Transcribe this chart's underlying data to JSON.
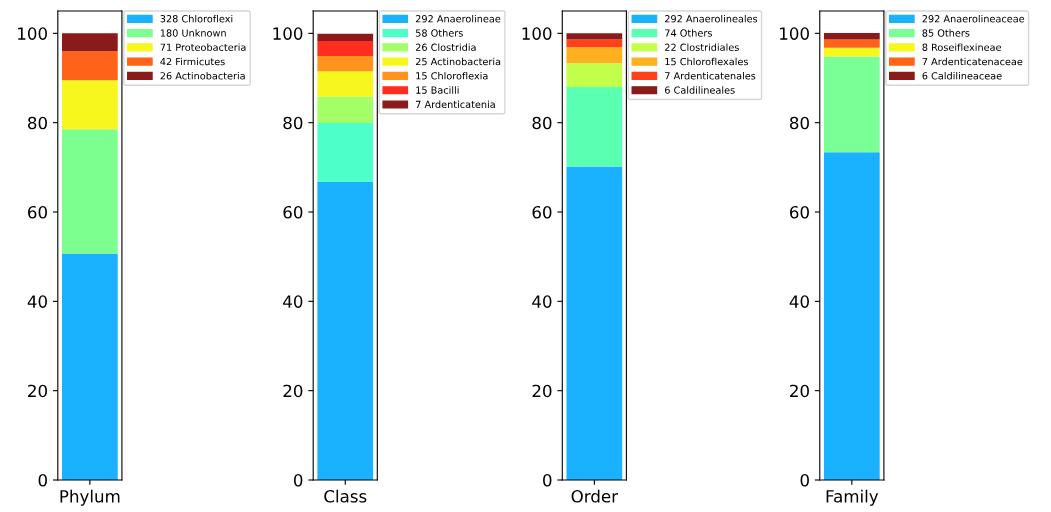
{
  "chart_data": [
    {
      "type": "bar",
      "stacked": true,
      "categories": [
        "Phylum"
      ],
      "ylim": [
        0,
        105
      ],
      "yticks": [
        0,
        20,
        40,
        60,
        80,
        100
      ],
      "legend": "top right",
      "series": [
        {
          "name": "328 Chloroflexi",
          "color": "#1ab2ff",
          "values": [
            50.7
          ]
        },
        {
          "name": "180 Unknown",
          "color": "#7dff8f",
          "values": [
            27.8
          ]
        },
        {
          "name": "71 Proteobacteria",
          "color": "#f7f71e",
          "values": [
            11.0
          ]
        },
        {
          "name": "42 Firmicutes",
          "color": "#ff6319",
          "values": [
            6.5
          ]
        },
        {
          "name": "26 Actinobacteria",
          "color": "#8b1a1a",
          "values": [
            4.0
          ]
        }
      ]
    },
    {
      "type": "bar",
      "stacked": true,
      "categories": [
        "Class"
      ],
      "ylim": [
        0,
        105
      ],
      "yticks": [
        0,
        20,
        40,
        60,
        80,
        100
      ],
      "legend": "top right",
      "series": [
        {
          "name": "292 Anaerolineae",
          "color": "#1ab2ff",
          "values": [
            66.7
          ]
        },
        {
          "name": "58 Others",
          "color": "#4dffc8",
          "values": [
            13.2
          ]
        },
        {
          "name": "26 Clostridia",
          "color": "#a3ff68",
          "values": [
            5.9
          ]
        },
        {
          "name": "25 Actinobacteria",
          "color": "#f7f71e",
          "values": [
            5.7
          ]
        },
        {
          "name": "15 Chloroflexia",
          "color": "#ff931e",
          "values": [
            3.4
          ]
        },
        {
          "name": "15 Bacilli",
          "color": "#ff2e1e",
          "values": [
            3.4
          ]
        },
        {
          "name": "7 Ardenticatenia",
          "color": "#8b1a1a",
          "values": [
            1.6
          ]
        }
      ]
    },
    {
      "type": "bar",
      "stacked": true,
      "categories": [
        "Order"
      ],
      "ylim": [
        0,
        105
      ],
      "yticks": [
        0,
        20,
        40,
        60,
        80,
        100
      ],
      "legend": "top right",
      "series": [
        {
          "name": "292 Anaerolineales",
          "color": "#1ab2ff",
          "values": [
            70.2
          ]
        },
        {
          "name": "74 Others",
          "color": "#5affb2",
          "values": [
            17.8
          ]
        },
        {
          "name": "22 Clostridiales",
          "color": "#c3ff4a",
          "values": [
            5.3
          ]
        },
        {
          "name": "15 Chloroflexales",
          "color": "#ffb01e",
          "values": [
            3.6
          ]
        },
        {
          "name": "7 Ardenticatenales",
          "color": "#ff4219",
          "values": [
            1.7
          ]
        },
        {
          "name": "6 Caldilineales",
          "color": "#8b1a1a",
          "values": [
            1.4
          ]
        }
      ]
    },
    {
      "type": "bar",
      "stacked": true,
      "categories": [
        "Family"
      ],
      "ylim": [
        0,
        105
      ],
      "yticks": [
        0,
        20,
        40,
        60,
        80,
        100
      ],
      "legend": "top right",
      "series": [
        {
          "name": "292 Anaerolineaceae",
          "color": "#1ab2ff",
          "values": [
            73.4
          ]
        },
        {
          "name": "85 Others",
          "color": "#7aff96",
          "values": [
            21.4
          ]
        },
        {
          "name": "8 Roseiflexineae",
          "color": "#f7f71e",
          "values": [
            2.0
          ]
        },
        {
          "name": "7 Ardenticatenaceae",
          "color": "#ff6319",
          "values": [
            1.8
          ]
        },
        {
          "name": "6 Caldilineaceae",
          "color": "#8b1a1a",
          "values": [
            1.5
          ]
        }
      ]
    }
  ]
}
